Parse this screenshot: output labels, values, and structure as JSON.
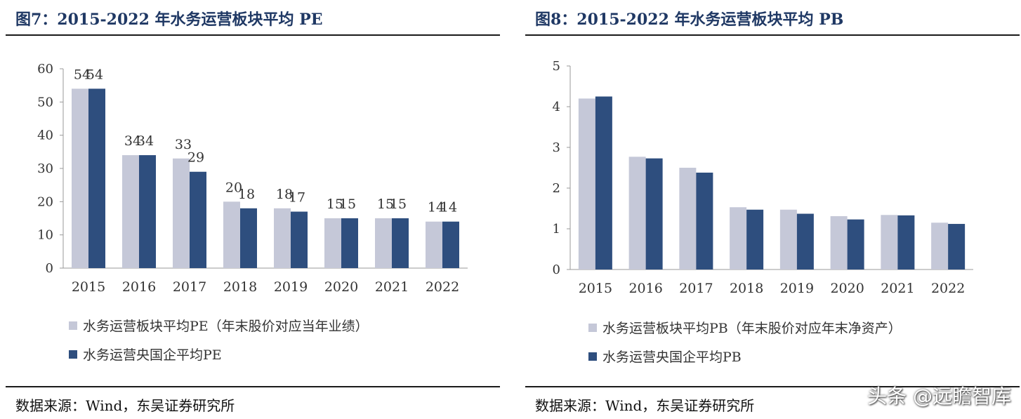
{
  "watermark": "头条 @远瞻智库",
  "chart_data": [
    {
      "type": "bar",
      "title": "图7：2015-2022 年水务运营板块平均 PE",
      "categories": [
        "2015",
        "2016",
        "2017",
        "2018",
        "2019",
        "2020",
        "2021",
        "2022"
      ],
      "ylim": [
        0,
        60
      ],
      "yticks": [
        0,
        10,
        20,
        30,
        40,
        50,
        60
      ],
      "grid": false,
      "legend_position": "bottom",
      "series": [
        {
          "name": "水务运营板块平均PE（年末股价对应当年业绩）",
          "color": "#c5c8d8",
          "values": [
            54,
            34,
            33,
            20,
            18,
            15,
            15,
            14
          ],
          "labels": [
            "54",
            "34",
            "33",
            "20",
            "18",
            "15",
            "15",
            "14"
          ]
        },
        {
          "name": "水务运营央国企平均PE",
          "color": "#2e4e7e",
          "values": [
            54,
            34,
            29,
            18,
            17,
            15,
            15,
            14
          ],
          "labels": [
            "54",
            "34",
            "29",
            "18",
            "17",
            "15",
            "15",
            "14"
          ]
        }
      ],
      "source": "数据来源：Wind，东吴证券研究所"
    },
    {
      "type": "bar",
      "title": "图8：2015-2022 年水务运营板块平均 PB",
      "categories": [
        "2015",
        "2016",
        "2017",
        "2018",
        "2019",
        "2020",
        "2021",
        "2022"
      ],
      "ylim": [
        0,
        5
      ],
      "yticks": [
        0,
        1,
        2,
        3,
        4,
        5
      ],
      "grid": false,
      "legend_position": "bottom",
      "series": [
        {
          "name": "水务运营板块平均PB（年末股价对应年末净资产）",
          "color": "#c5c8d8",
          "values": [
            4.2,
            2.77,
            2.5,
            1.53,
            1.47,
            1.31,
            1.34,
            1.15
          ]
        },
        {
          "name": "水务运营央国企平均PB",
          "color": "#2e4e7e",
          "values": [
            4.25,
            2.73,
            2.38,
            1.47,
            1.37,
            1.23,
            1.33,
            1.12
          ]
        }
      ],
      "source": "数据来源：Wind，东吴证券研究所"
    }
  ]
}
